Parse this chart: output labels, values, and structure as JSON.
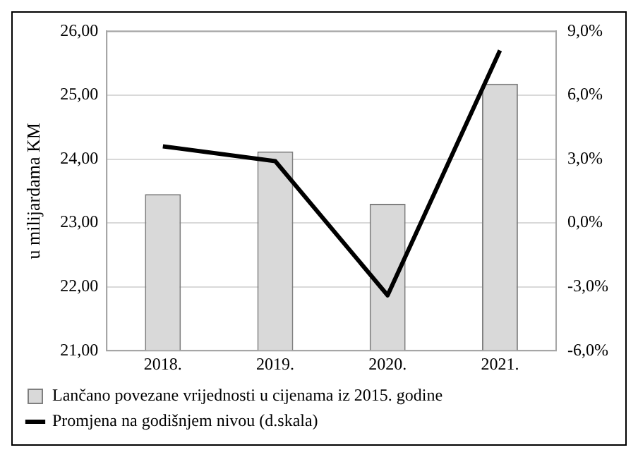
{
  "chart_data": {
    "type": "bar",
    "ylabel": "u milijardama KM",
    "categories": [
      "2018.",
      "2019.",
      "2020.",
      "2021."
    ],
    "series": [
      {
        "name": "Lančano povezane vrijednosti u cijenama iz 2015. godine",
        "color": "#d9d9d9",
        "values": [
          23.45,
          24.12,
          23.3,
          25.18
        ]
      },
      {
        "name": "Promjena na godišnjem nivou (d.skala)",
        "type": "line",
        "axis": "y2",
        "color": "#000000",
        "values": [
          3.6,
          2.9,
          -3.4,
          8.1
        ]
      }
    ],
    "ylim": [
      21,
      26
    ],
    "yticks": [
      {
        "value": 21,
        "label": "21,00"
      },
      {
        "value": 22,
        "label": "22,00"
      },
      {
        "value": 23,
        "label": "23,00"
      },
      {
        "value": 24,
        "label": "24,00"
      },
      {
        "value": 25,
        "label": "25,00"
      },
      {
        "value": 26,
        "label": "26,00"
      }
    ],
    "y2lim": [
      -6,
      9
    ],
    "y2ticks": [
      {
        "value": -6,
        "label": "-6,0%"
      },
      {
        "value": -3,
        "label": "-3,0%"
      },
      {
        "value": 0,
        "label": "0,0%"
      },
      {
        "value": 3,
        "label": "3,0%"
      },
      {
        "value": 6,
        "label": "6,0%"
      },
      {
        "value": 9,
        "label": "9,0%"
      }
    ],
    "grid": "y",
    "legend": "bottom",
    "marker": "none"
  }
}
